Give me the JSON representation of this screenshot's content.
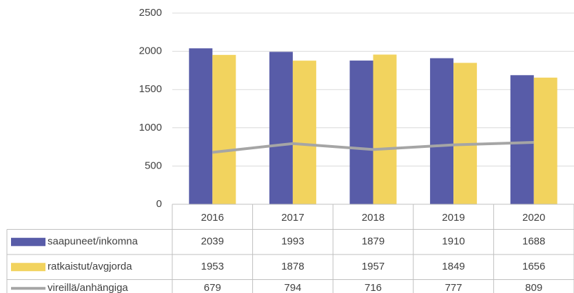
{
  "chart_data": {
    "type": "bar",
    "categories": [
      "2016",
      "2017",
      "2018",
      "2019",
      "2020"
    ],
    "series": [
      {
        "name": "saapuneet/inkomna",
        "color": "#585ca8",
        "values": [
          2039,
          1993,
          1879,
          1910,
          1688
        ]
      },
      {
        "name": "ratkaistut/avgjorda",
        "color": "#f2d35e",
        "values": [
          1953,
          1878,
          1957,
          1849,
          1656
        ]
      },
      {
        "name": "vireillä/anhängiga",
        "color": "#a5a5a5",
        "type": "line",
        "values": [
          679,
          794,
          716,
          777,
          809
        ]
      }
    ],
    "ylim": [
      0,
      2500
    ],
    "yticks": [
      0,
      500,
      1000,
      1500,
      2000,
      2500
    ],
    "grid": true,
    "data_table": true
  }
}
